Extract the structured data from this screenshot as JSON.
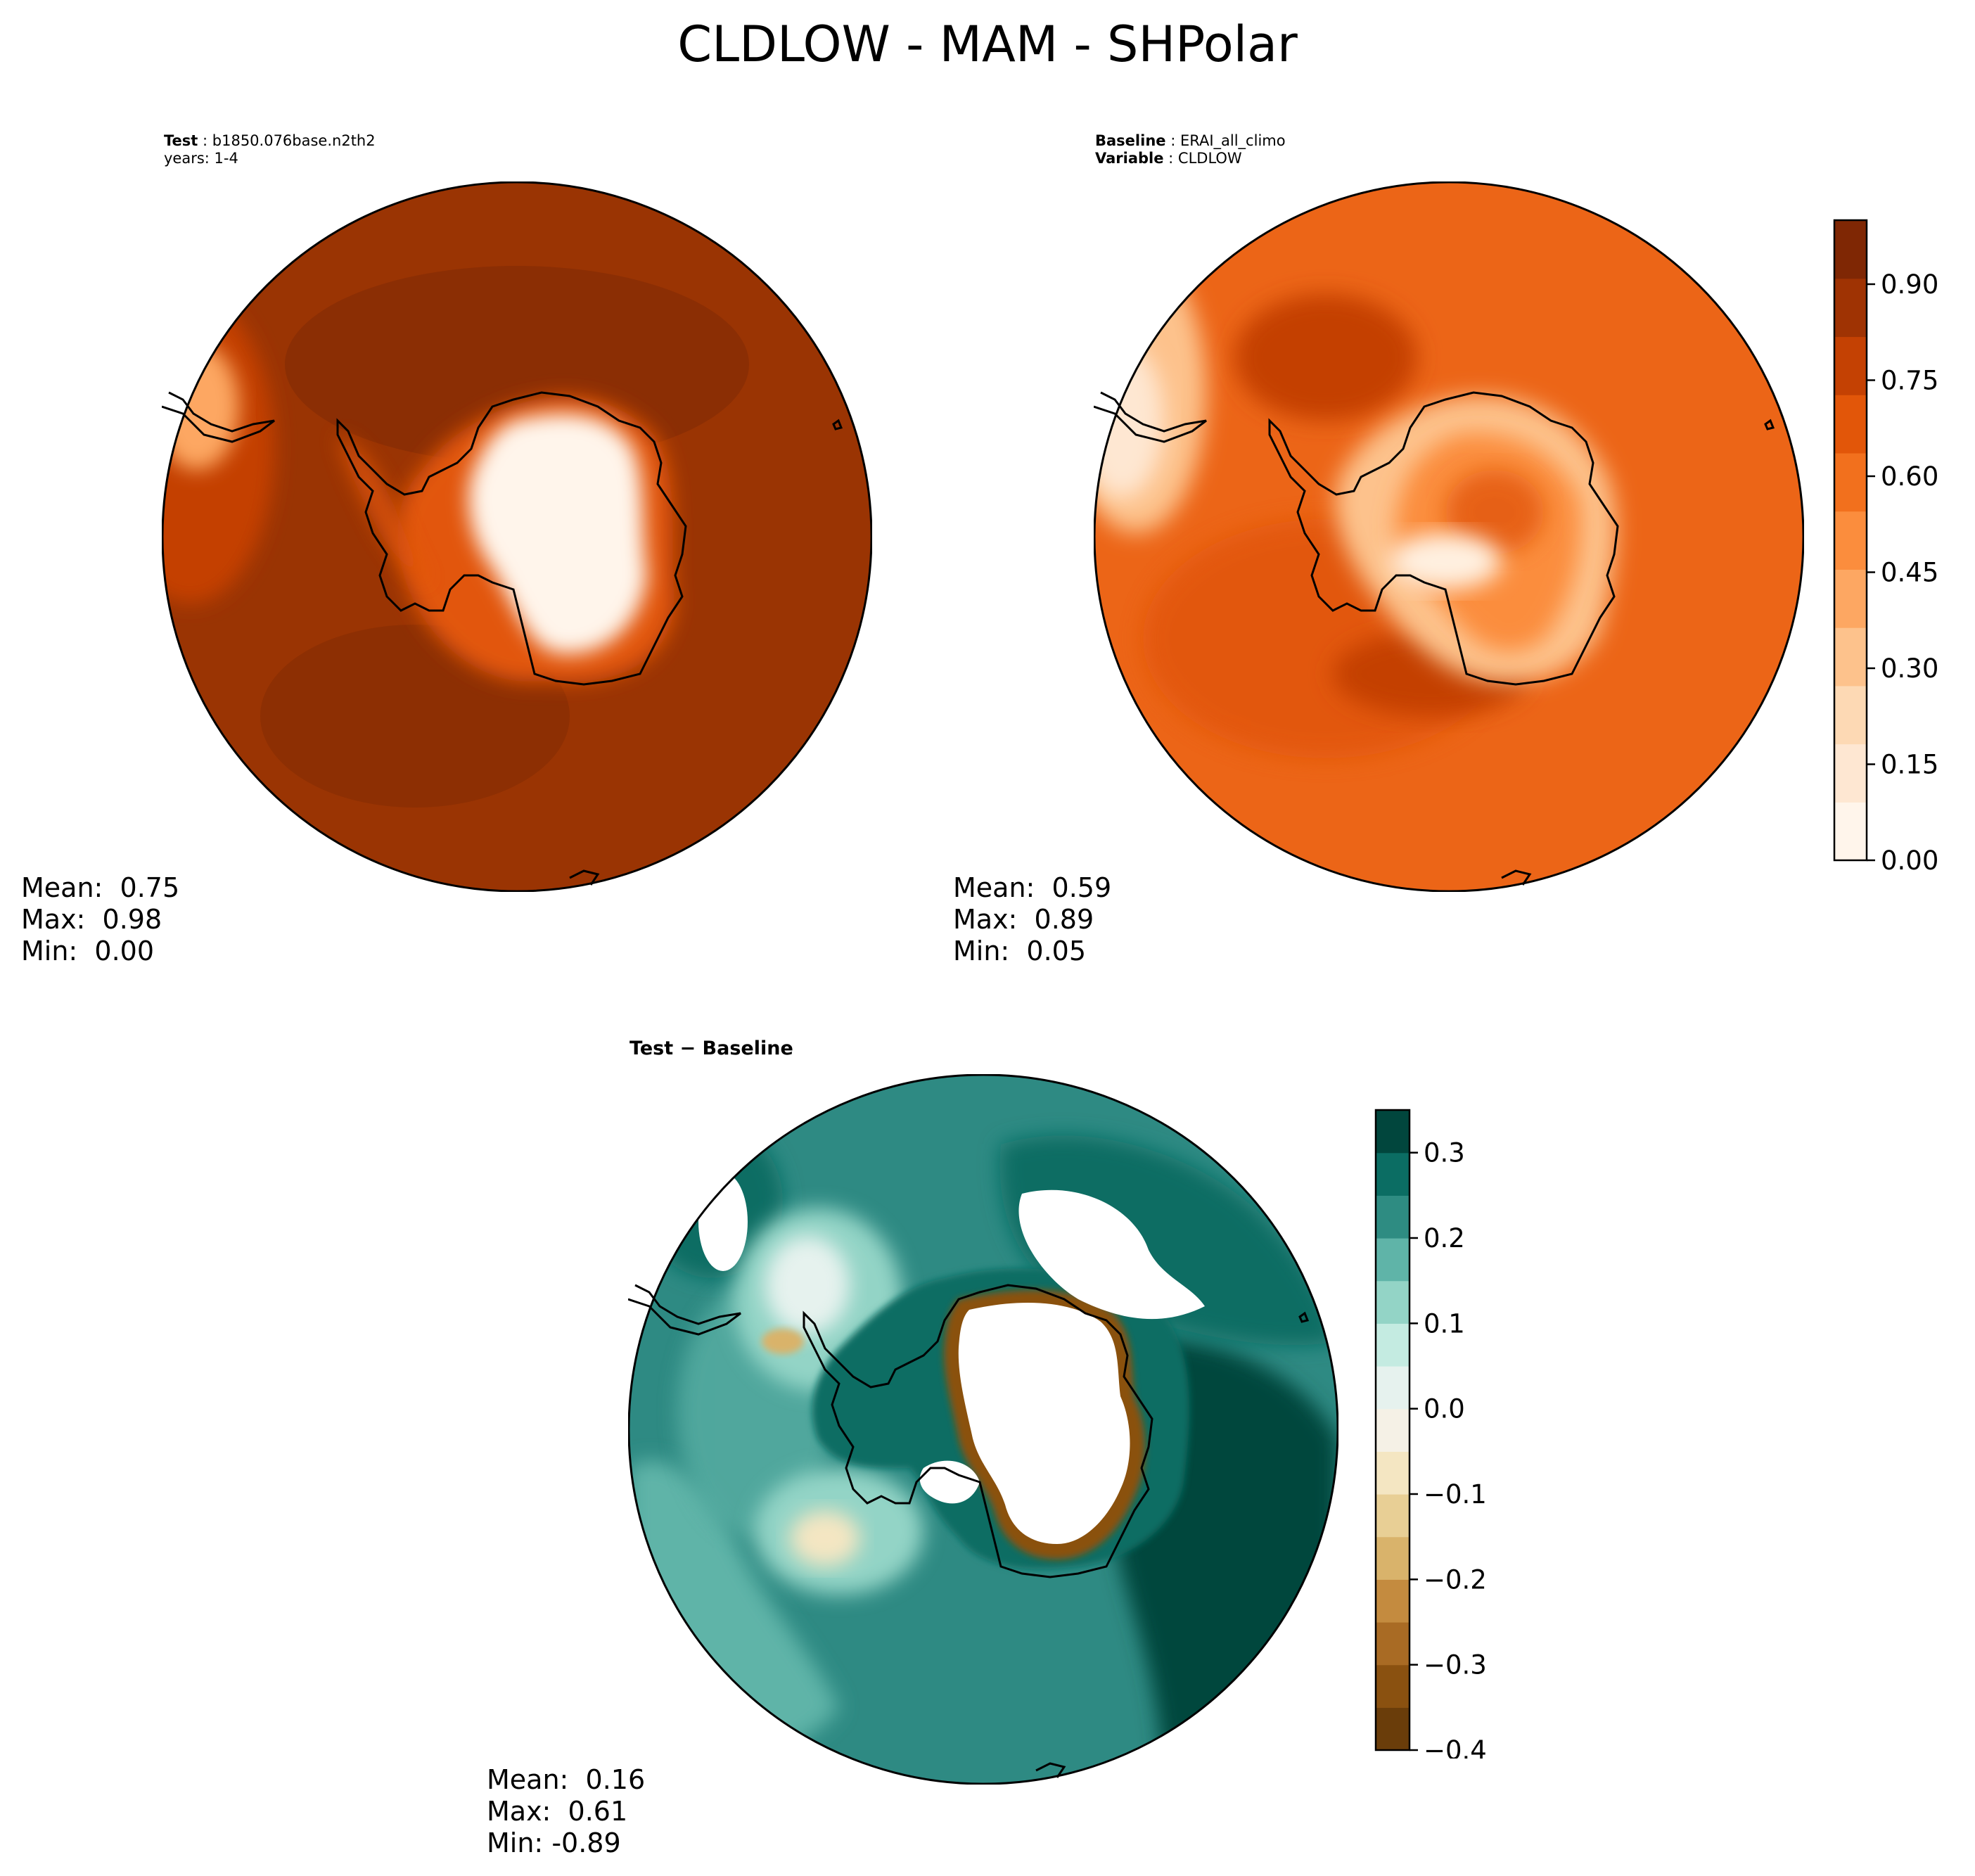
{
  "figure": {
    "title": "CLDLOW - MAM - SHPolar"
  },
  "panels": {
    "test": {
      "label_key": "Test",
      "label_value": "b1850.076base.n2th2",
      "years": "years: 1-4",
      "stats": {
        "mean_label": "Mean:",
        "mean": "0.75",
        "max_label": "Max:",
        "max": "0.98",
        "min_label": "Min:",
        "min": "0.00"
      }
    },
    "baseline": {
      "label_key": "Baseline",
      "label_value": "ERAI_all_climo",
      "variable_key": "Variable",
      "variable_value": "CLDLOW",
      "stats": {
        "mean_label": "Mean:",
        "mean": "0.59",
        "max_label": "Max:",
        "max": "0.89",
        "min_label": "Min:",
        "min": "0.05"
      }
    },
    "diff": {
      "label": "Test − Baseline",
      "stats": {
        "mean_label": "Mean:",
        "mean": "0.16",
        "max_label": "Max:",
        "max": "0.61",
        "min_label": "Min:",
        "min": "-0.89"
      }
    }
  },
  "colorbars": {
    "sequential": {
      "ticks": [
        "0.00",
        "0.15",
        "0.30",
        "0.45",
        "0.60",
        "0.75",
        "0.90"
      ],
      "tick_values": [
        0.0,
        0.15,
        0.3,
        0.45,
        0.6,
        0.75,
        0.9
      ],
      "range": [
        0.0,
        1.0
      ],
      "colors": [
        "#fff5eb",
        "#fee7d2",
        "#fdd9b4",
        "#fdc28c",
        "#fda762",
        "#fb8d3d",
        "#f2701d",
        "#e25609",
        "#c44103",
        "#9f3303",
        "#7f2704"
      ]
    },
    "diverging": {
      "ticks": [
        "0.3",
        "0.2",
        "0.1",
        "0.0",
        "−0.1",
        "−0.2",
        "−0.3",
        "−0.4"
      ],
      "tick_values": [
        0.3,
        0.2,
        0.1,
        0.0,
        -0.1,
        -0.2,
        -0.3,
        -0.4
      ],
      "range": [
        -0.4,
        0.35
      ],
      "colors": [
        "#6a3d0a",
        "#8a5110",
        "#a96b24",
        "#c48b3f",
        "#d9b36b",
        "#e8cf95",
        "#f4e6c2",
        "#f5f1e6",
        "#e6f2ee",
        "#c4ebe1",
        "#93d4c6",
        "#5fb4a8",
        "#2e8c82",
        "#0b6d63",
        "#01463d"
      ]
    }
  },
  "colors": {
    "seq_ocean_test": "#9a3403",
    "seq_ocean_base": "#ec6517",
    "div_ocean": "#2e8a83",
    "coastline": "#000000"
  }
}
